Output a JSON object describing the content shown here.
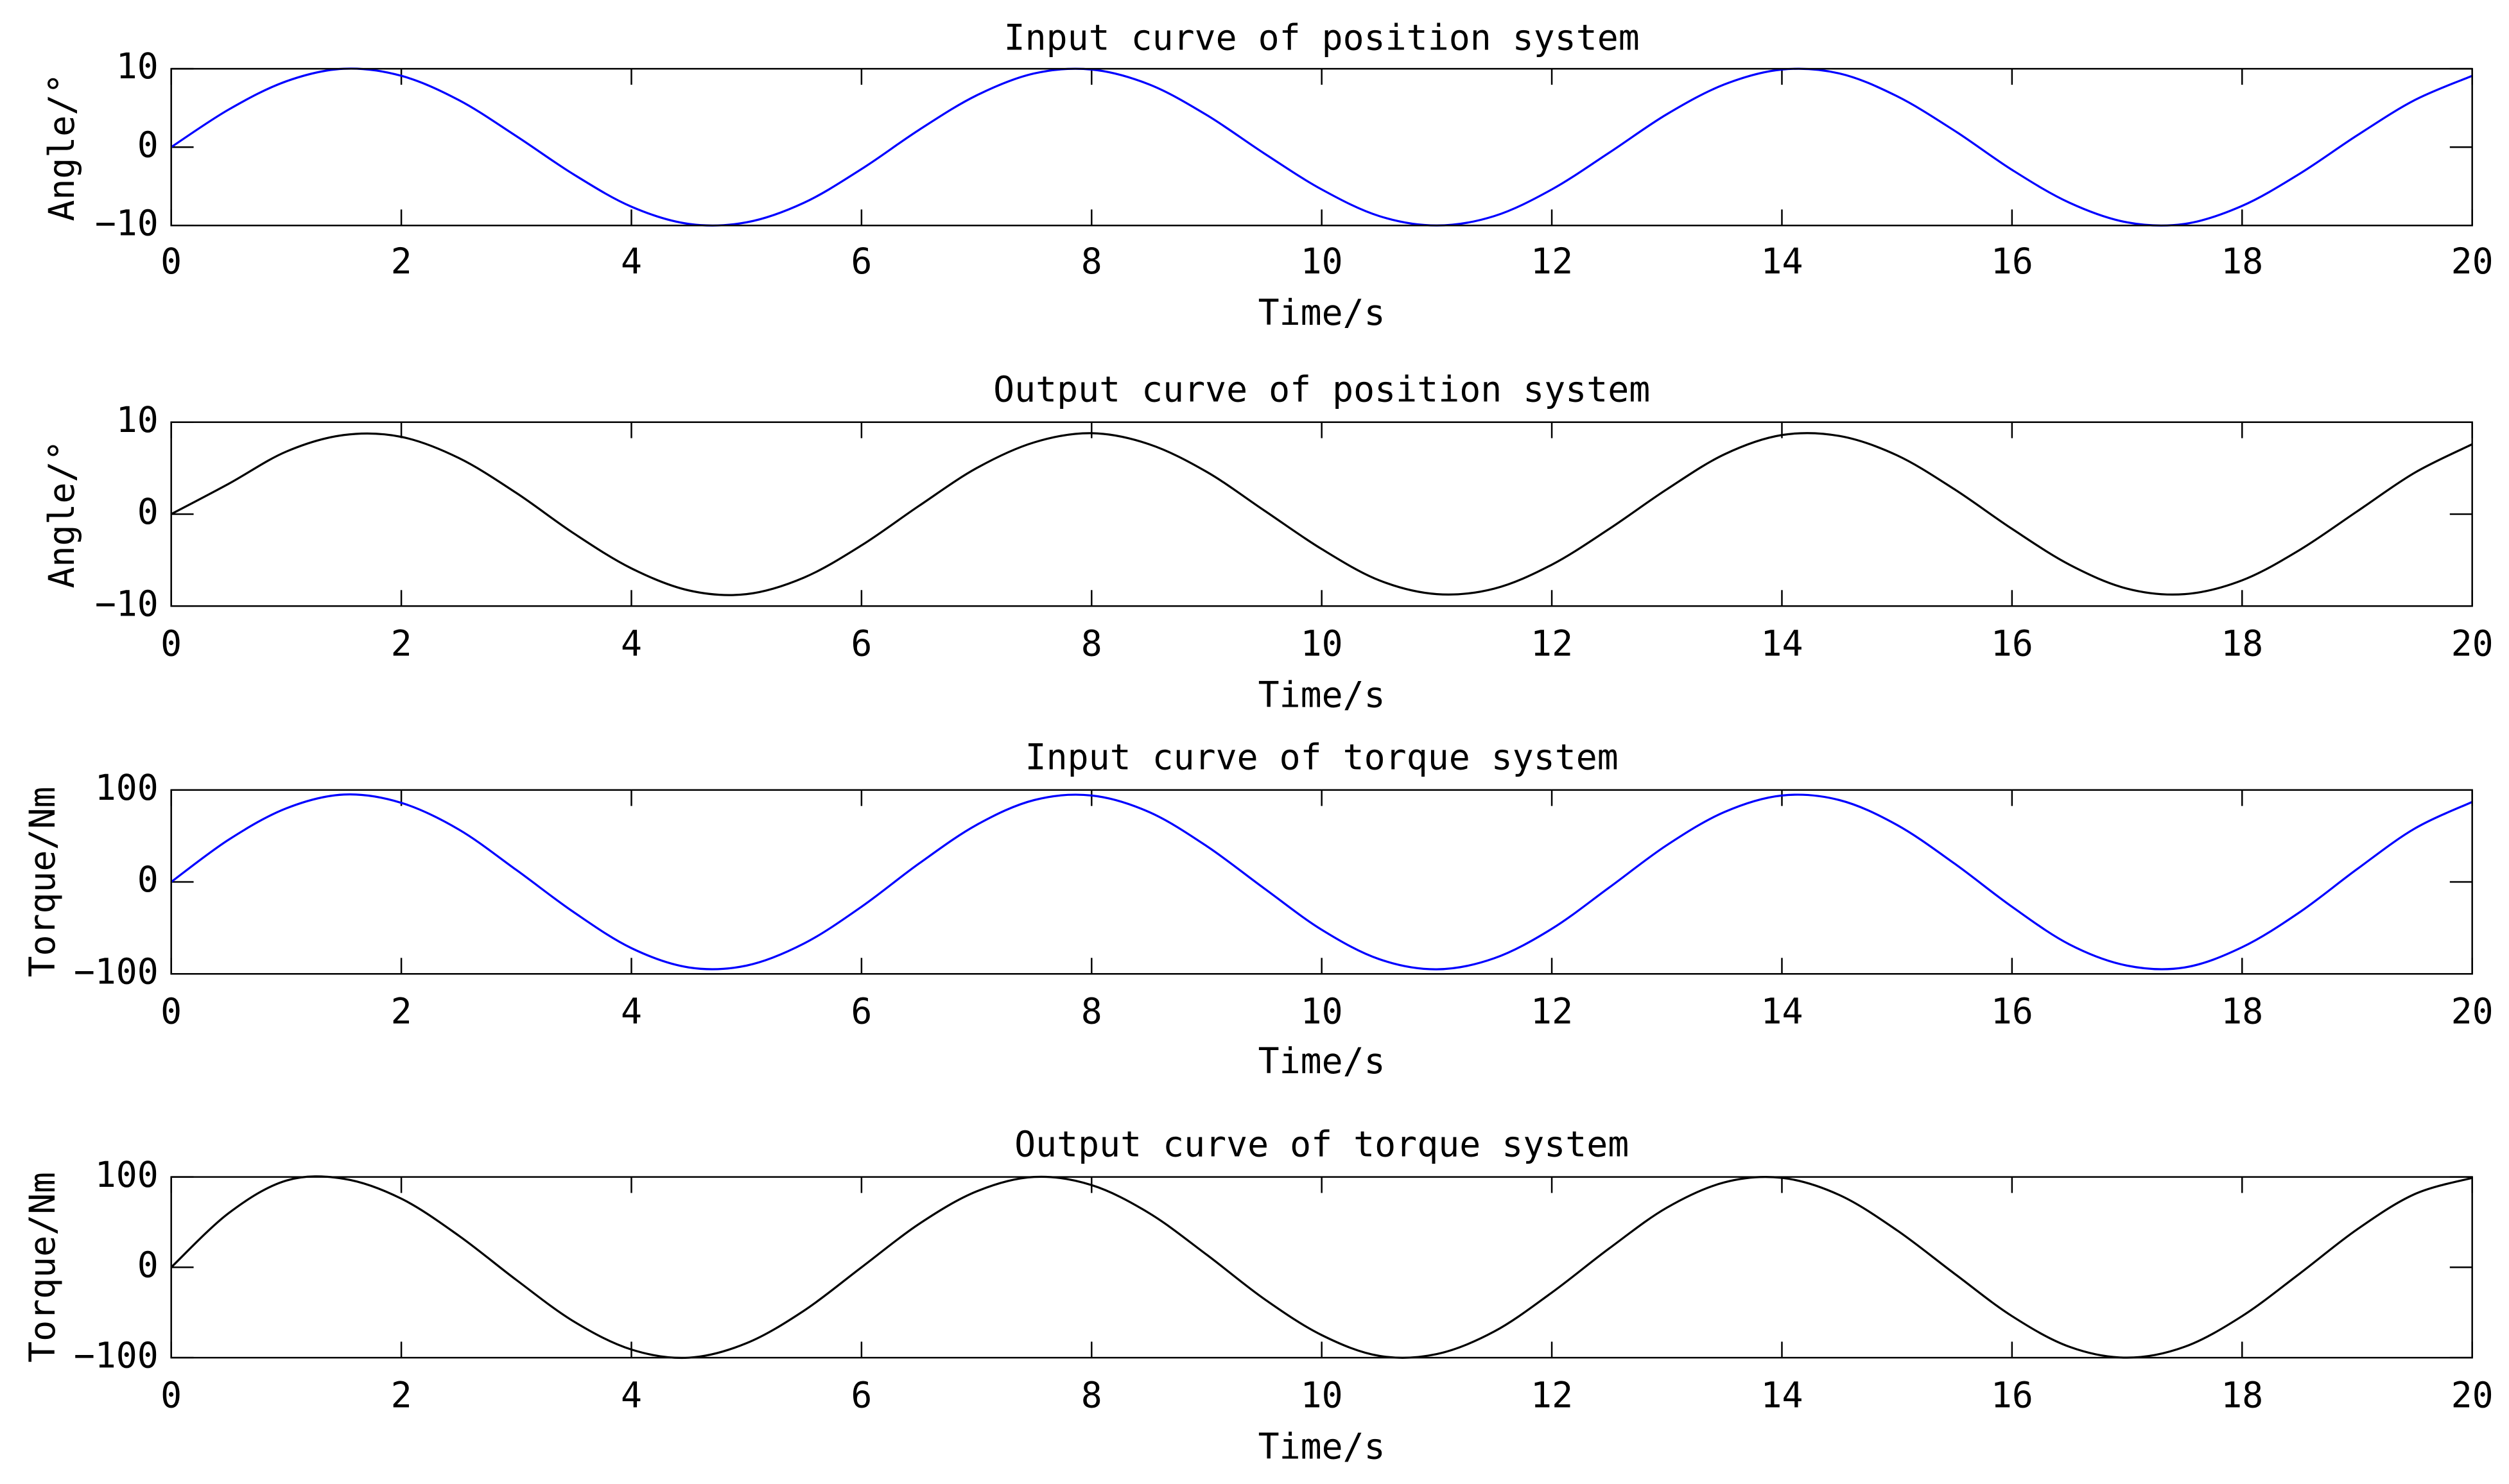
{
  "chart_data": [
    {
      "type": "line",
      "title": "Input curve of position system",
      "xlabel": "Time/s",
      "ylabel": "Angle/°",
      "color": "#0000ff",
      "x": [
        0,
        0.5,
        1,
        1.5,
        2,
        2.5,
        3,
        3.5,
        4,
        4.5,
        5,
        5.5,
        6,
        6.5,
        7,
        7.5,
        8,
        8.5,
        9,
        9.5,
        10,
        10.5,
        11,
        11.5,
        12,
        12.5,
        13,
        13.5,
        14,
        14.5,
        15,
        15.5,
        16,
        16.5,
        17,
        17.5,
        18,
        18.5,
        19,
        19.5,
        20
      ],
      "values": [
        0,
        4.8,
        8.4,
        10,
        9.1,
        6,
        1.4,
        -3.5,
        -7.6,
        -9.8,
        -9.6,
        -7.1,
        -2.8,
        2.2,
        6.6,
        9.4,
        9.9,
        8,
        4.1,
        -0.8,
        -5.4,
        -8.8,
        -10,
        -8.8,
        -5.4,
        -0.7,
        4.2,
        8,
        9.9,
        9.4,
        6.5,
        2.1,
        -2.9,
        -7.1,
        -9.6,
        -9.8,
        -7.5,
        -3.4,
        1.5,
        6,
        9.1
      ],
      "xlim": [
        0,
        20
      ],
      "xticks": [
        0,
        2,
        4,
        6,
        8,
        10,
        12,
        14,
        16,
        18,
        20
      ],
      "ylim": [
        -10,
        10
      ],
      "yticks": [
        {
          "value": -10,
          "label": "−10"
        },
        0,
        10
      ]
    },
    {
      "type": "line",
      "title": "Output curve of position system",
      "xlabel": "Time/s",
      "ylabel": "Angle/°",
      "color": "#000000",
      "x": [
        0,
        0.5,
        1,
        1.5,
        2,
        2.5,
        3,
        3.5,
        4,
        4.5,
        5,
        5.5,
        6,
        6.5,
        7,
        7.5,
        8,
        8.5,
        9,
        9.5,
        10,
        10.5,
        11,
        11.5,
        12,
        12.5,
        13,
        13.5,
        14,
        14.5,
        15,
        15.5,
        16,
        16.5,
        17,
        17.5,
        18,
        18.5,
        19,
        19.5,
        20
      ],
      "values": [
        0,
        3.3,
        6.8,
        8.6,
        8.4,
        6.1,
        2.3,
        -2.1,
        -5.9,
        -8.3,
        -8.7,
        -6.9,
        -3.4,
        0.9,
        5,
        7.8,
        8.8,
        7.6,
        4.6,
        0.4,
        -3.8,
        -7.2,
        -8.7,
        -8.1,
        -5.5,
        -1.6,
        2.7,
        6.5,
        8.6,
        8.5,
        6.4,
        2.7,
        -1.6,
        -5.5,
        -8.1,
        -8.7,
        -7.2,
        -3.9,
        0.3,
        4.5,
        7.6
      ],
      "xlim": [
        0,
        20
      ],
      "xticks": [
        0,
        2,
        4,
        6,
        8,
        10,
        12,
        14,
        16,
        18,
        20
      ],
      "ylim": [
        -10,
        10
      ],
      "yticks": [
        {
          "value": -10,
          "label": "−10"
        },
        0,
        10
      ]
    },
    {
      "type": "line",
      "title": "Input curve of torque system",
      "xlabel": "Time/s",
      "ylabel": "Torque/Nm",
      "color": "#0000ff",
      "x": [
        0,
        0.5,
        1,
        1.5,
        2,
        2.5,
        3,
        3.5,
        4,
        4.5,
        5,
        5.5,
        6,
        6.5,
        7,
        7.5,
        8,
        8.5,
        9,
        9.5,
        10,
        10.5,
        11,
        11.5,
        12,
        12.5,
        13,
        13.5,
        14,
        14.5,
        15,
        15.5,
        16,
        16.5,
        17,
        17.5,
        18,
        18.5,
        19,
        19.5,
        20
      ],
      "values": [
        0,
        46,
        80,
        95,
        86,
        57,
        13,
        -33,
        -72,
        -93,
        -91,
        -67,
        -27,
        20,
        62,
        89,
        94,
        76,
        39,
        -7,
        -52,
        -84,
        -95,
        -83,
        -51,
        -6,
        40,
        76,
        94,
        89,
        62,
        20,
        -27,
        -68,
        -91,
        -93,
        -71,
        -33,
        14,
        58,
        87
      ],
      "xlim": [
        0,
        20
      ],
      "xticks": [
        0,
        2,
        4,
        6,
        8,
        10,
        12,
        14,
        16,
        18,
        20
      ],
      "ylim": [
        -100,
        100
      ],
      "yticks": [
        {
          "value": -100,
          "label": "−100"
        },
        0,
        100
      ]
    },
    {
      "type": "line",
      "title": "Output curve of torque system",
      "xlabel": "Time/s",
      "ylabel": "Torque/Nm",
      "color": "#000000",
      "x": [
        0,
        0.5,
        1,
        1.5,
        2,
        2.5,
        3,
        3.5,
        4,
        4.5,
        5,
        5.5,
        6,
        6.5,
        7,
        7.5,
        8,
        8.5,
        9,
        9.5,
        10,
        10.5,
        11,
        11.5,
        12,
        12.5,
        13,
        13.5,
        14,
        14.5,
        15,
        15.5,
        16,
        16.5,
        17,
        17.5,
        18,
        18.5,
        19,
        19.5,
        20
      ],
      "values": [
        0,
        60,
        96,
        98,
        76,
        35,
        -14,
        -60,
        -91,
        -100,
        -84,
        -48,
        0,
        48,
        84,
        100,
        91,
        60,
        14,
        -35,
        -75,
        -98,
        -96,
        -71,
        -28,
        21,
        66,
        94,
        99,
        80,
        41,
        -7,
        -54,
        -88,
        -100,
        -88,
        -54,
        -7,
        42,
        81,
        99
      ],
      "xlim": [
        0,
        20
      ],
      "xticks": [
        0,
        2,
        4,
        6,
        8,
        10,
        12,
        14,
        16,
        18,
        20
      ],
      "ylim": [
        -100,
        100
      ],
      "yticks": [
        {
          "value": -100,
          "label": "−100"
        },
        0,
        100
      ]
    }
  ]
}
